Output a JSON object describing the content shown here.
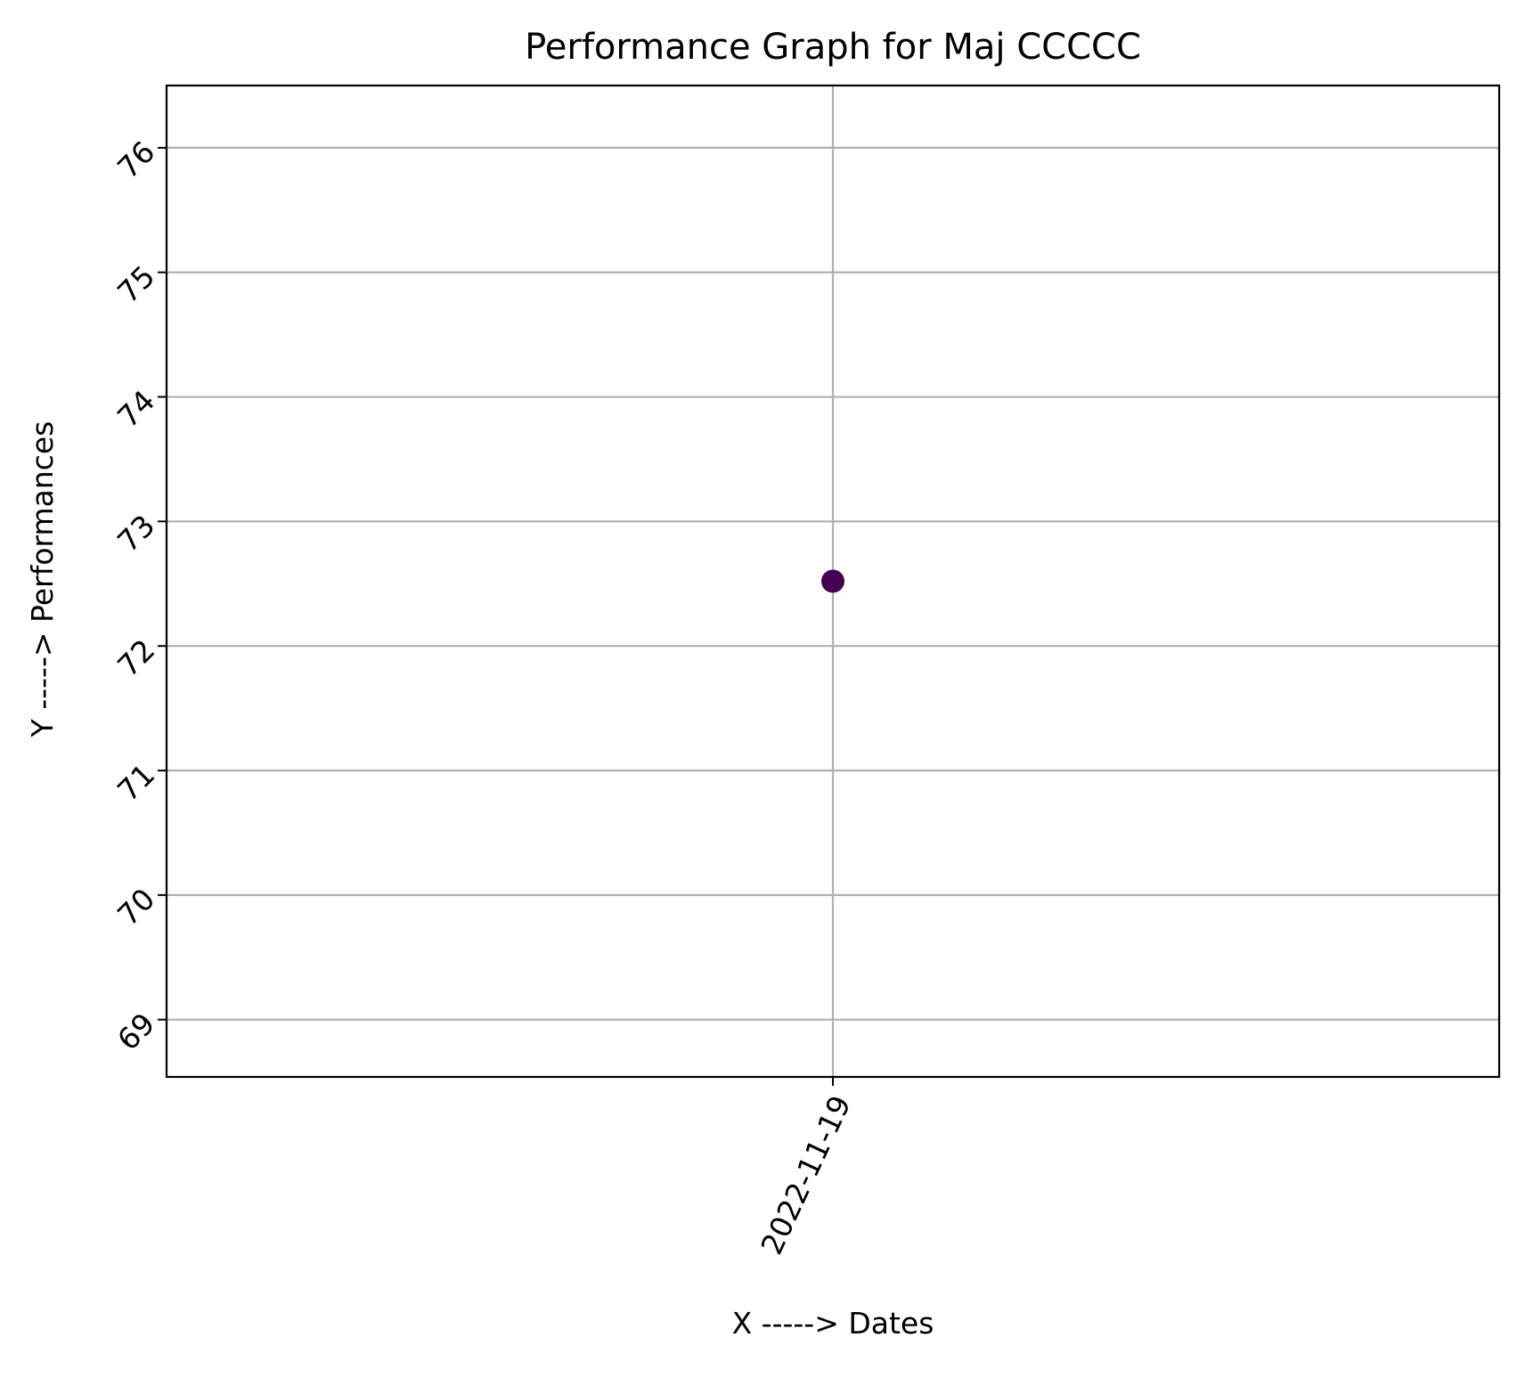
{
  "chart_data": {
    "type": "scatter",
    "title": "Performance Graph for Maj CCCCC",
    "xlabel": "X -----> Dates",
    "ylabel": "Y -----> Performances",
    "x_categories": [
      "2022-11-19"
    ],
    "points": [
      {
        "x": "2022-11-19",
        "y": 72.52
      }
    ],
    "yticks": [
      69,
      70,
      71,
      72,
      73,
      74,
      75,
      76
    ],
    "ylim": [
      68.54,
      76.5
    ],
    "grid": true,
    "marker_color": "#440154",
    "grid_color": "#b0b0b0"
  }
}
